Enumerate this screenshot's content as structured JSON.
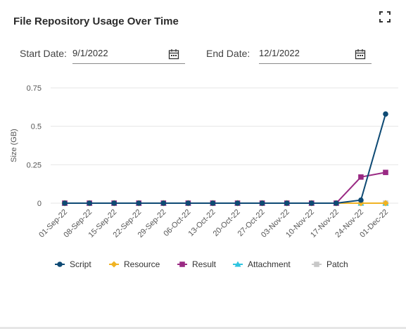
{
  "header": {
    "title": "File Repository Usage Over Time",
    "expand_icon": "expand-icon"
  },
  "filters": {
    "start_label": "Start Date:",
    "start_value": "9/1/2022",
    "end_label": "End Date:",
    "end_value": "12/1/2022",
    "calendar_icon": "calendar-icon"
  },
  "colors": {
    "Script": "#0e4a74",
    "Resource": "#f0b323",
    "Result": "#9a2a84",
    "Attachment": "#2fc4e0",
    "Patch": "#c8c8c8",
    "grid": "#e6e6e6",
    "text": "#555555"
  },
  "chart_data": {
    "type": "line",
    "ylabel": "Size (GB)",
    "ylim": [
      0,
      0.75
    ],
    "yticks": [
      0,
      0.25,
      0.5,
      0.75
    ],
    "ytick_labels": [
      "0",
      "0.25",
      "0.5",
      "0.75"
    ],
    "categories": [
      "01-Sep-22",
      "08-Sep-22",
      "15-Sep-22",
      "22-Sep-22",
      "29-Sep-22",
      "06-Oct-22",
      "13-Oct-22",
      "20-Oct-22",
      "27-Oct-22",
      "03-Nov-22",
      "10-Nov-22",
      "17-Nov-22",
      "24-Nov-22",
      "01-Dec-22"
    ],
    "grid": true,
    "legend_position": "bottom",
    "series": [
      {
        "name": "Script",
        "marker": "circle",
        "values": [
          0,
          0,
          0,
          0,
          0,
          0,
          0,
          0,
          0,
          0,
          0,
          0,
          0.02,
          0.58
        ]
      },
      {
        "name": "Resource",
        "marker": "diamond",
        "values": [
          0,
          0,
          0,
          0,
          0,
          0,
          0,
          0,
          0,
          0,
          0,
          0,
          0,
          0
        ]
      },
      {
        "name": "Result",
        "marker": "square",
        "values": [
          0,
          0,
          0,
          0,
          0,
          0,
          0,
          0,
          0,
          0,
          0,
          0,
          0.17,
          0.2
        ]
      },
      {
        "name": "Attachment",
        "marker": "triangle",
        "values": [
          0,
          0,
          0,
          0,
          0,
          0,
          0,
          0,
          0,
          0,
          0,
          0,
          0,
          0
        ]
      },
      {
        "name": "Patch",
        "marker": "square",
        "values": [
          0,
          0,
          0,
          0,
          0,
          0,
          0,
          0,
          0,
          0,
          0,
          0,
          0,
          0
        ]
      }
    ]
  }
}
